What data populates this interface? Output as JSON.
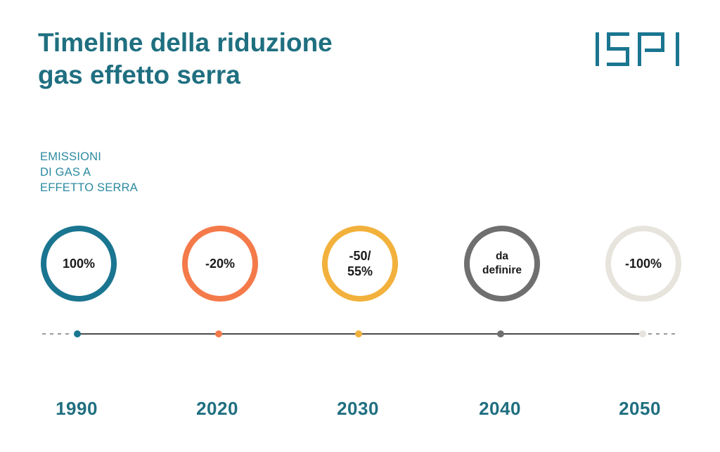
{
  "title": {
    "line1": "Timeline della riduzione",
    "line2": "gas effetto serra"
  },
  "logo": {
    "text": "ISPI"
  },
  "subtitle": {
    "line1": "EMISSIONI",
    "line2": "DI GAS A",
    "line3": "EFFETTO SERRA"
  },
  "milestones": [
    {
      "year": "1990",
      "label": "100%",
      "color": "#1a7590"
    },
    {
      "year": "2020",
      "label": "-20%",
      "color": "#f47a4a"
    },
    {
      "year": "2030",
      "label": "-50/\n55%",
      "color": "#f2b13c"
    },
    {
      "year": "2040",
      "label": "da\ndefinire",
      "color": "#6f6f6f"
    },
    {
      "year": "2050",
      "label": "-100%",
      "color": "#e6e4dc"
    }
  ]
}
